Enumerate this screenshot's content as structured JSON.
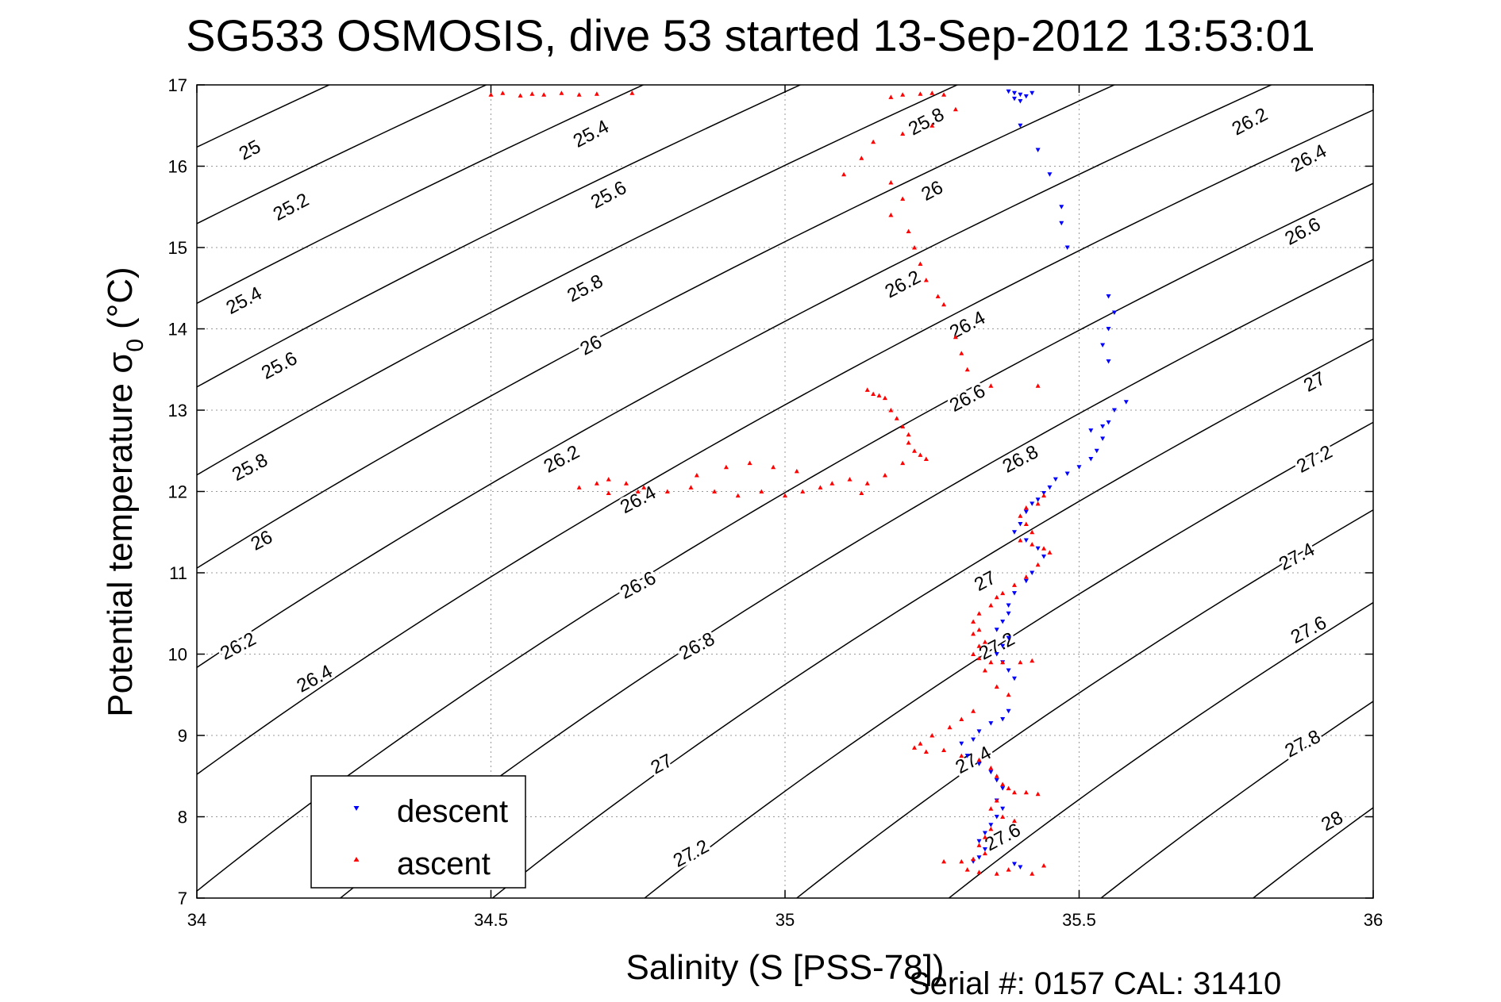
{
  "chart_data": {
    "type": "scatter",
    "title": "SG533 OSMOSIS, dive 53 started 13-Sep-2012 13:53:01",
    "xlabel": "Salinity (S [PSS-78])",
    "ylabel_main": "Potential temperature σ",
    "ylabel_sub": "0",
    "ylabel_unit": "(°C)",
    "footer": "Serial #: 0157  CAL: 31410",
    "xlim": [
      34,
      36
    ],
    "ylim": [
      7,
      17
    ],
    "xticks": [
      34,
      34.5,
      35,
      35.5,
      36
    ],
    "yticks": [
      7,
      8,
      9,
      10,
      11,
      12,
      13,
      14,
      15,
      16,
      17
    ],
    "xtick_labels": [
      "34",
      "34.5",
      "35",
      "35.5",
      "36"
    ],
    "ytick_labels": [
      "7",
      "8",
      "9",
      "10",
      "11",
      "12",
      "13",
      "14",
      "15",
      "16",
      "17"
    ],
    "grid": true,
    "legend_position": "bottom-left",
    "contour_levels": [
      25,
      25.2,
      25.4,
      25.6,
      25.8,
      26,
      26.2,
      26.4,
      26.6,
      26.8,
      27,
      27.2,
      27.4,
      27.6,
      27.8,
      28
    ],
    "contour_labels": [
      {
        "text": "25",
        "x": 34.09,
        "y": 16.2
      },
      {
        "text": "25.2",
        "x": 34.16,
        "y": 15.5
      },
      {
        "text": "25.4",
        "x": 34.08,
        "y": 14.35
      },
      {
        "text": "25.6",
        "x": 34.14,
        "y": 13.55
      },
      {
        "text": "25.8",
        "x": 34.09,
        "y": 12.3
      },
      {
        "text": "26",
        "x": 34.11,
        "y": 11.4
      },
      {
        "text": "26.2",
        "x": 34.07,
        "y": 10.1
      },
      {
        "text": "26.4",
        "x": 34.2,
        "y": 9.7
      },
      {
        "text": "25.4",
        "x": 34.67,
        "y": 16.4
      },
      {
        "text": "25.6",
        "x": 34.7,
        "y": 15.65
      },
      {
        "text": "25.8",
        "x": 34.66,
        "y": 14.5
      },
      {
        "text": "26",
        "x": 34.67,
        "y": 13.8
      },
      {
        "text": "26.2",
        "x": 34.62,
        "y": 12.4
      },
      {
        "text": "26.4",
        "x": 34.75,
        "y": 11.9
      },
      {
        "text": "26.6",
        "x": 34.75,
        "y": 10.85
      },
      {
        "text": "26.8",
        "x": 34.85,
        "y": 10.1
      },
      {
        "text": "27",
        "x": 34.79,
        "y": 8.65
      },
      {
        "text": "27.2",
        "x": 34.84,
        "y": 7.55
      },
      {
        "text": "25.8",
        "x": 35.24,
        "y": 16.55
      },
      {
        "text": "26",
        "x": 35.25,
        "y": 15.7
      },
      {
        "text": "26.2",
        "x": 35.2,
        "y": 14.55
      },
      {
        "text": "26.4",
        "x": 35.31,
        "y": 14.05
      },
      {
        "text": "26.6",
        "x": 35.31,
        "y": 13.15
      },
      {
        "text": "26.8",
        "x": 35.4,
        "y": 12.4
      },
      {
        "text": "27",
        "x": 35.34,
        "y": 10.9
      },
      {
        "text": "27.2",
        "x": 35.36,
        "y": 10.1
      },
      {
        "text": "27.4",
        "x": 35.32,
        "y": 8.7
      },
      {
        "text": "27.6",
        "x": 35.37,
        "y": 7.75
      },
      {
        "text": "26.2",
        "x": 35.79,
        "y": 16.55
      },
      {
        "text": "26.4",
        "x": 35.89,
        "y": 16.1
      },
      {
        "text": "26.6",
        "x": 35.88,
        "y": 15.2
      },
      {
        "text": "27",
        "x": 35.9,
        "y": 13.35
      },
      {
        "text": "27.2",
        "x": 35.9,
        "y": 12.4
      },
      {
        "text": "27.4",
        "x": 35.87,
        "y": 11.2
      },
      {
        "text": "27.6",
        "x": 35.89,
        "y": 10.3
      },
      {
        "text": "27.8",
        "x": 35.88,
        "y": 8.9
      },
      {
        "text": "28",
        "x": 35.93,
        "y": 7.95
      }
    ],
    "series": [
      {
        "name": "descent",
        "marker": "triangle-down",
        "color": "#0000ff",
        "points": [
          [
            35.39,
            16.9
          ],
          [
            35.4,
            16.88
          ],
          [
            35.41,
            16.86
          ],
          [
            35.39,
            16.83
          ],
          [
            35.4,
            16.8
          ],
          [
            35.38,
            16.92
          ],
          [
            35.42,
            16.9
          ],
          [
            35.4,
            16.5
          ],
          [
            35.43,
            16.2
          ],
          [
            35.45,
            15.9
          ],
          [
            35.47,
            15.5
          ],
          [
            35.47,
            15.3
          ],
          [
            35.48,
            15.0
          ],
          [
            35.55,
            14.4
          ],
          [
            35.56,
            14.2
          ],
          [
            35.55,
            14.0
          ],
          [
            35.54,
            13.8
          ],
          [
            35.55,
            13.6
          ],
          [
            35.58,
            13.1
          ],
          [
            35.56,
            13.0
          ],
          [
            35.55,
            12.85
          ],
          [
            35.54,
            12.8
          ],
          [
            35.52,
            12.75
          ],
          [
            35.54,
            12.65
          ],
          [
            35.53,
            12.5
          ],
          [
            35.52,
            12.4
          ],
          [
            35.5,
            12.3
          ],
          [
            35.48,
            12.22
          ],
          [
            35.46,
            12.15
          ],
          [
            35.45,
            12.05
          ],
          [
            35.44,
            11.98
          ],
          [
            35.43,
            11.9
          ],
          [
            35.42,
            11.85
          ],
          [
            35.41,
            11.75
          ],
          [
            35.4,
            11.6
          ],
          [
            35.39,
            11.5
          ],
          [
            35.41,
            11.4
          ],
          [
            35.43,
            11.3
          ],
          [
            35.44,
            11.2
          ],
          [
            35.42,
            11.0
          ],
          [
            35.41,
            10.9
          ],
          [
            35.39,
            10.75
          ],
          [
            35.38,
            10.6
          ],
          [
            35.38,
            10.5
          ],
          [
            35.37,
            10.4
          ],
          [
            35.36,
            10.3
          ],
          [
            35.38,
            10.2
          ],
          [
            35.37,
            10.1
          ],
          [
            35.36,
            10.0
          ],
          [
            35.37,
            9.9
          ],
          [
            35.38,
            9.8
          ],
          [
            35.39,
            9.7
          ],
          [
            35.38,
            9.3
          ],
          [
            35.37,
            9.2
          ],
          [
            35.35,
            9.15
          ],
          [
            35.33,
            9.05
          ],
          [
            35.32,
            8.95
          ],
          [
            35.3,
            8.9
          ],
          [
            35.31,
            8.75
          ],
          [
            35.33,
            8.65
          ],
          [
            35.35,
            8.55
          ],
          [
            35.36,
            8.45
          ],
          [
            35.37,
            8.35
          ],
          [
            35.36,
            8.2
          ],
          [
            35.37,
            8.1
          ],
          [
            35.36,
            8.0
          ],
          [
            35.35,
            7.9
          ],
          [
            35.34,
            7.8
          ],
          [
            35.33,
            7.7
          ],
          [
            35.34,
            7.6
          ],
          [
            35.33,
            7.5
          ],
          [
            35.32,
            7.45
          ],
          [
            35.39,
            7.42
          ],
          [
            35.4,
            7.38
          ]
        ]
      },
      {
        "name": "ascent",
        "marker": "triangle-up",
        "color": "#ff0000",
        "points": [
          [
            34.5,
            16.88
          ],
          [
            34.52,
            16.9
          ],
          [
            34.55,
            16.87
          ],
          [
            34.57,
            16.89
          ],
          [
            34.59,
            16.88
          ],
          [
            34.62,
            16.9
          ],
          [
            34.65,
            16.88
          ],
          [
            34.68,
            16.89
          ],
          [
            34.74,
            16.9
          ],
          [
            35.18,
            16.85
          ],
          [
            35.2,
            16.88
          ],
          [
            35.23,
            16.89
          ],
          [
            35.25,
            16.9
          ],
          [
            35.27,
            16.88
          ],
          [
            35.29,
            16.7
          ],
          [
            35.25,
            16.5
          ],
          [
            35.2,
            16.4
          ],
          [
            35.15,
            16.3
          ],
          [
            35.13,
            16.1
          ],
          [
            35.1,
            15.9
          ],
          [
            35.18,
            15.8
          ],
          [
            35.2,
            15.6
          ],
          [
            35.18,
            15.4
          ],
          [
            35.21,
            15.2
          ],
          [
            35.22,
            15.0
          ],
          [
            35.23,
            14.8
          ],
          [
            35.24,
            14.6
          ],
          [
            35.26,
            14.4
          ],
          [
            35.27,
            14.3
          ],
          [
            35.29,
            13.9
          ],
          [
            35.3,
            13.7
          ],
          [
            35.31,
            13.5
          ],
          [
            35.35,
            13.3
          ],
          [
            35.43,
            13.3
          ],
          [
            35.14,
            13.25
          ],
          [
            35.15,
            13.2
          ],
          [
            35.16,
            13.18
          ],
          [
            35.17,
            13.15
          ],
          [
            35.18,
            13.0
          ],
          [
            35.19,
            12.9
          ],
          [
            35.2,
            12.8
          ],
          [
            35.21,
            12.7
          ],
          [
            35.21,
            12.6
          ],
          [
            35.22,
            12.5
          ],
          [
            35.23,
            12.45
          ],
          [
            35.24,
            12.4
          ],
          [
            35.2,
            12.35
          ],
          [
            34.65,
            12.05
          ],
          [
            34.68,
            12.1
          ],
          [
            34.7,
            12.15
          ],
          [
            34.73,
            12.1
          ],
          [
            34.76,
            12.05
          ],
          [
            34.8,
            12.0
          ],
          [
            34.84,
            12.05
          ],
          [
            34.88,
            12.0
          ],
          [
            34.92,
            11.95
          ],
          [
            34.96,
            12.0
          ],
          [
            35.0,
            11.95
          ],
          [
            35.03,
            12.0
          ],
          [
            35.06,
            12.05
          ],
          [
            35.08,
            12.1
          ],
          [
            35.11,
            12.15
          ],
          [
            35.14,
            12.1
          ],
          [
            35.17,
            12.2
          ],
          [
            35.13,
            11.98
          ],
          [
            34.9,
            12.3
          ],
          [
            34.94,
            12.35
          ],
          [
            34.98,
            12.3
          ],
          [
            35.02,
            12.25
          ],
          [
            34.85,
            12.2
          ],
          [
            34.75,
            12.0
          ],
          [
            34.7,
            11.98
          ],
          [
            35.44,
            11.95
          ],
          [
            35.43,
            11.85
          ],
          [
            35.41,
            11.8
          ],
          [
            35.4,
            11.7
          ],
          [
            35.41,
            11.6
          ],
          [
            35.42,
            11.5
          ],
          [
            35.4,
            11.4
          ],
          [
            35.42,
            11.35
          ],
          [
            35.44,
            11.3
          ],
          [
            35.45,
            11.25
          ],
          [
            35.43,
            11.1
          ],
          [
            35.41,
            10.95
          ],
          [
            35.39,
            10.85
          ],
          [
            35.37,
            10.75
          ],
          [
            35.36,
            10.7
          ],
          [
            35.35,
            10.6
          ],
          [
            35.33,
            10.5
          ],
          [
            35.32,
            10.4
          ],
          [
            35.33,
            10.3
          ],
          [
            35.32,
            10.25
          ],
          [
            35.34,
            10.15
          ],
          [
            35.33,
            10.1
          ],
          [
            35.32,
            10.0
          ],
          [
            35.33,
            9.95
          ],
          [
            35.35,
            9.9
          ],
          [
            35.37,
            9.9
          ],
          [
            35.4,
            9.9
          ],
          [
            35.42,
            9.92
          ],
          [
            35.34,
            9.8
          ],
          [
            35.36,
            9.6
          ],
          [
            35.38,
            9.5
          ],
          [
            35.32,
            9.3
          ],
          [
            35.3,
            9.2
          ],
          [
            35.28,
            9.1
          ],
          [
            35.25,
            9.0
          ],
          [
            35.23,
            8.9
          ],
          [
            35.22,
            8.85
          ],
          [
            35.24,
            8.8
          ],
          [
            35.27,
            8.82
          ],
          [
            35.3,
            8.75
          ],
          [
            35.33,
            8.7
          ],
          [
            35.35,
            8.6
          ],
          [
            35.36,
            8.5
          ],
          [
            35.37,
            8.4
          ],
          [
            35.38,
            8.35
          ],
          [
            35.39,
            8.3
          ],
          [
            35.41,
            8.3
          ],
          [
            35.43,
            8.28
          ],
          [
            35.36,
            8.2
          ],
          [
            35.35,
            8.1
          ],
          [
            35.37,
            8.0
          ],
          [
            35.39,
            7.95
          ],
          [
            35.35,
            7.85
          ],
          [
            35.34,
            7.75
          ],
          [
            35.33,
            7.65
          ],
          [
            35.34,
            7.55
          ],
          [
            35.32,
            7.48
          ],
          [
            35.3,
            7.45
          ],
          [
            35.27,
            7.45
          ],
          [
            35.31,
            7.35
          ],
          [
            35.33,
            7.32
          ],
          [
            35.36,
            7.3
          ],
          [
            35.38,
            7.35
          ],
          [
            35.42,
            7.3
          ],
          [
            35.44,
            7.4
          ]
        ]
      }
    ]
  }
}
